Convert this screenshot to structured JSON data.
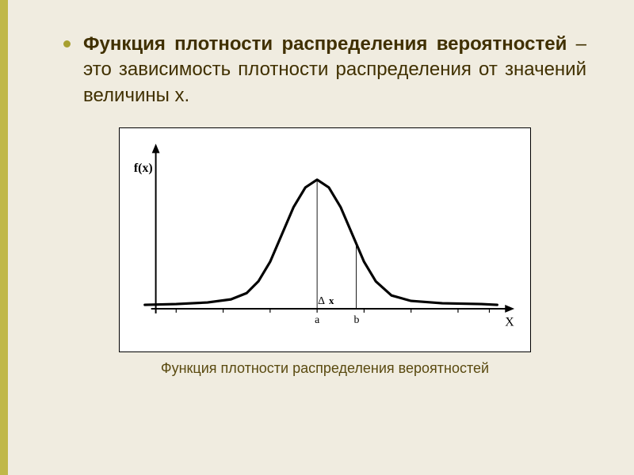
{
  "definition": {
    "bold_part": "Функция плотности распределения вероятностей",
    "rest": " – это зависимость плотности распределения от значений величины x."
  },
  "caption": "Функция плотности распределения вероятностей",
  "chart": {
    "type": "line",
    "y_label": "f(x)",
    "x_label": "X",
    "delta_label": "Δ",
    "delta_x_label": "x",
    "a_label": "a",
    "b_label": "b",
    "background_color": "#ffffff",
    "axis_color": "#000000",
    "line_color": "#000000",
    "line_width": 3.2,
    "vertical_guide_width": 0.9,
    "font_family": "serif",
    "label_fontsize": 14,
    "x_range": [
      0,
      480
    ],
    "y_range": [
      0,
      230
    ],
    "curve_points_x": [
      20,
      60,
      100,
      130,
      150,
      165,
      180,
      195,
      210,
      225,
      240,
      255,
      270,
      285,
      300,
      315,
      335,
      360,
      400,
      450,
      470
    ],
    "curve_points_y": [
      210,
      209,
      207,
      203,
      195,
      180,
      155,
      120,
      85,
      60,
      50,
      60,
      85,
      120,
      155,
      180,
      198,
      205,
      208,
      209,
      210
    ],
    "a_x": 240,
    "b_x": 290,
    "baseline_y": 215,
    "ticks_x": [
      60,
      120,
      180,
      240,
      300,
      360,
      420,
      460
    ]
  },
  "colors": {
    "slide_bg": "#f0ece0",
    "accent_bar": "#c0b848",
    "bullet": "#a8a030",
    "text": "#403000",
    "caption": "#5a4a10"
  }
}
